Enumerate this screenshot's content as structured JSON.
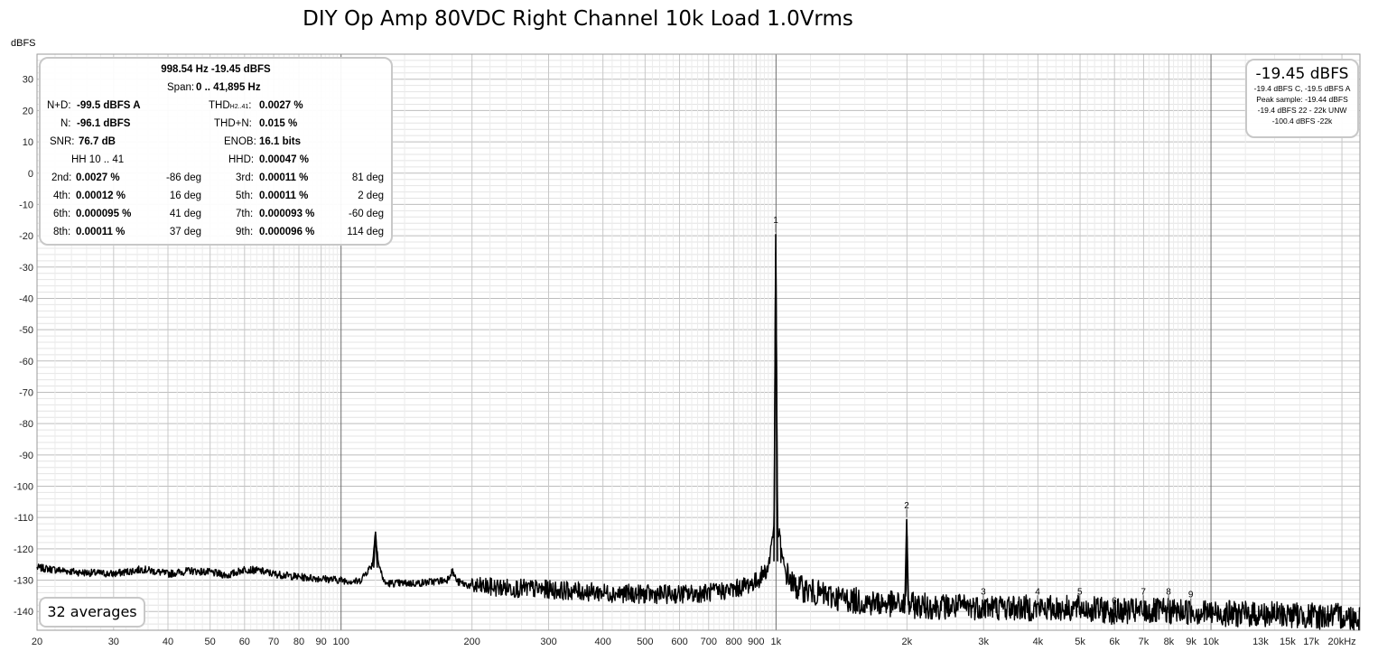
{
  "chart_data": {
    "type": "line",
    "title": "DIY Op Amp 80VDC Right Channel 10k Load 1.0Vrms",
    "ylabel": "dBFS",
    "xlabel": "",
    "x_scale": "log",
    "xlim": [
      20,
      22000
    ],
    "ylim": [
      -146,
      38
    ],
    "grid": true,
    "y_ticks": [
      30,
      20,
      10,
      0,
      -10,
      -20,
      -30,
      -40,
      -50,
      -60,
      -70,
      -80,
      -90,
      -100,
      -110,
      -120,
      -130,
      -140
    ],
    "x_ticks": [
      {
        "v": 20,
        "label": "20"
      },
      {
        "v": 30,
        "label": "30"
      },
      {
        "v": 40,
        "label": "40"
      },
      {
        "v": 50,
        "label": "50"
      },
      {
        "v": 60,
        "label": "60"
      },
      {
        "v": 70,
        "label": "70"
      },
      {
        "v": 80,
        "label": "80"
      },
      {
        "v": 90,
        "label": "90"
      },
      {
        "v": 100,
        "label": "100"
      },
      {
        "v": 200,
        "label": "200"
      },
      {
        "v": 300,
        "label": "300"
      },
      {
        "v": 400,
        "label": "400"
      },
      {
        "v": 500,
        "label": "500"
      },
      {
        "v": 600,
        "label": "600"
      },
      {
        "v": 700,
        "label": "700"
      },
      {
        "v": 800,
        "label": "800"
      },
      {
        "v": 900,
        "label": "900"
      },
      {
        "v": 1000,
        "label": "1k"
      },
      {
        "v": 2000,
        "label": "2k"
      },
      {
        "v": 3000,
        "label": "3k"
      },
      {
        "v": 4000,
        "label": "4k"
      },
      {
        "v": 5000,
        "label": "5k"
      },
      {
        "v": 6000,
        "label": "6k"
      },
      {
        "v": 7000,
        "label": "7k"
      },
      {
        "v": 8000,
        "label": "8k"
      },
      {
        "v": 9000,
        "label": "9k"
      },
      {
        "v": 10000,
        "label": "10k"
      },
      {
        "v": 13000,
        "label": "13k"
      },
      {
        "v": 15000,
        "label": "15k"
      },
      {
        "v": 17000,
        "label": "17k"
      },
      {
        "v": 20000,
        "label": "20kHz"
      }
    ],
    "series": [
      {
        "name": "",
        "color": "#000000",
        "points": [
          [
            20,
            -126
          ],
          [
            25,
            -127.5
          ],
          [
            30,
            -128
          ],
          [
            35,
            -126.5
          ],
          [
            40,
            -128
          ],
          [
            45,
            -127
          ],
          [
            50,
            -127.5
          ],
          [
            55,
            -128.5
          ],
          [
            60,
            -126.5
          ],
          [
            65,
            -127
          ],
          [
            70,
            -128
          ],
          [
            80,
            -129
          ],
          [
            90,
            -129.5
          ],
          [
            100,
            -130
          ],
          [
            110,
            -130.5
          ],
          [
            118,
            -125
          ],
          [
            120,
            -114.5
          ],
          [
            122,
            -125
          ],
          [
            126,
            -131
          ],
          [
            150,
            -131
          ],
          [
            175,
            -130
          ],
          [
            180,
            -127
          ],
          [
            185,
            -130.5
          ],
          [
            200,
            -132
          ],
          [
            300,
            -133
          ],
          [
            400,
            -134
          ],
          [
            500,
            -134.5
          ],
          [
            600,
            -134.5
          ],
          [
            700,
            -134
          ],
          [
            800,
            -133
          ],
          [
            900,
            -130.5
          ],
          [
            960,
            -126
          ],
          [
            990,
            -112
          ],
          [
            998.54,
            -19.45
          ],
          [
            1008,
            -113
          ],
          [
            1040,
            -126
          ],
          [
            1100,
            -132
          ],
          [
            1300,
            -135
          ],
          [
            1600,
            -137
          ],
          [
            1990,
            -138
          ],
          [
            2000,
            -110.5
          ],
          [
            2010,
            -138
          ],
          [
            2500,
            -138.5
          ],
          [
            3000,
            -138.5
          ],
          [
            4000,
            -139
          ],
          [
            5000,
            -139
          ],
          [
            6000,
            -140
          ],
          [
            7000,
            -140
          ],
          [
            8000,
            -140
          ],
          [
            9000,
            -140
          ],
          [
            10000,
            -140.5
          ],
          [
            13000,
            -141
          ],
          [
            15000,
            -141
          ],
          [
            17000,
            -141.5
          ],
          [
            20000,
            -141.5
          ],
          [
            22000,
            -142
          ]
        ]
      }
    ],
    "harmonic_markers": [
      {
        "label": "1",
        "freq": 998.54,
        "db": -19.45
      },
      {
        "label": "2",
        "freq": 1997,
        "db": -110.5
      },
      {
        "label": "3",
        "freq": 2996,
        "db": -138
      },
      {
        "label": "4",
        "freq": 3994,
        "db": -138
      },
      {
        "label": "5",
        "freq": 4993,
        "db": -138
      },
      {
        "label": "6",
        "freq": 5991,
        "db": -141
      },
      {
        "label": "7",
        "freq": 6990,
        "db": -138
      },
      {
        "label": "8",
        "freq": 7988,
        "db": -138
      },
      {
        "label": "9",
        "freq": 8987,
        "db": -139
      }
    ]
  },
  "info": {
    "freq_level": "998.54 Hz  -19.45 dBFS",
    "span_label": "Span:",
    "span_value": "0 .. 41,895 Hz",
    "nd_label": "N+D:",
    "nd_value": "-99.5 dBFS A",
    "thd_label_main": "THD",
    "thd_label_sub": "H2..41",
    "thd_value": "0.0027 %",
    "n_label": "N:",
    "n_value": "-96.1 dBFS",
    "thdn_label": "THD+N:",
    "thdn_value": "0.015 %",
    "snr_label": "SNR:",
    "snr_value": "76.7 dB",
    "enob_label": "ENOB:",
    "enob_value": "16.1 bits",
    "hh_label": "HH 10 .. 41",
    "hhd_label": "HHD:",
    "hhd_value": "0.00047 %",
    "harmonics": [
      {
        "name": "2nd:",
        "value": "0.0027 %",
        "phase": "-86 deg"
      },
      {
        "name": "3rd:",
        "value": "0.00011 %",
        "phase": "81 deg"
      },
      {
        "name": "4th:",
        "value": "0.00012 %",
        "phase": "16 deg"
      },
      {
        "name": "5th:",
        "value": "0.00011 %",
        "phase": "2 deg"
      },
      {
        "name": "6th:",
        "value": "0.000095 %",
        "phase": "41 deg"
      },
      {
        "name": "7th:",
        "value": "0.000093 %",
        "phase": "-60 deg"
      },
      {
        "name": "8th:",
        "value": "0.00011 %",
        "phase": "37 deg"
      },
      {
        "name": "9th:",
        "value": "0.000096 %",
        "phase": "114 deg"
      }
    ]
  },
  "level_box": {
    "main": "-19.45 dBFS",
    "line1": "-19.4 dBFS C, -19.5 dBFS A",
    "line2": "Peak sample: -19.44 dBFS",
    "line3": "-19.4 dBFS 22 - 22k UNW",
    "line4": "-100.4 dBFS -22k"
  },
  "averages_label": "32 averages"
}
